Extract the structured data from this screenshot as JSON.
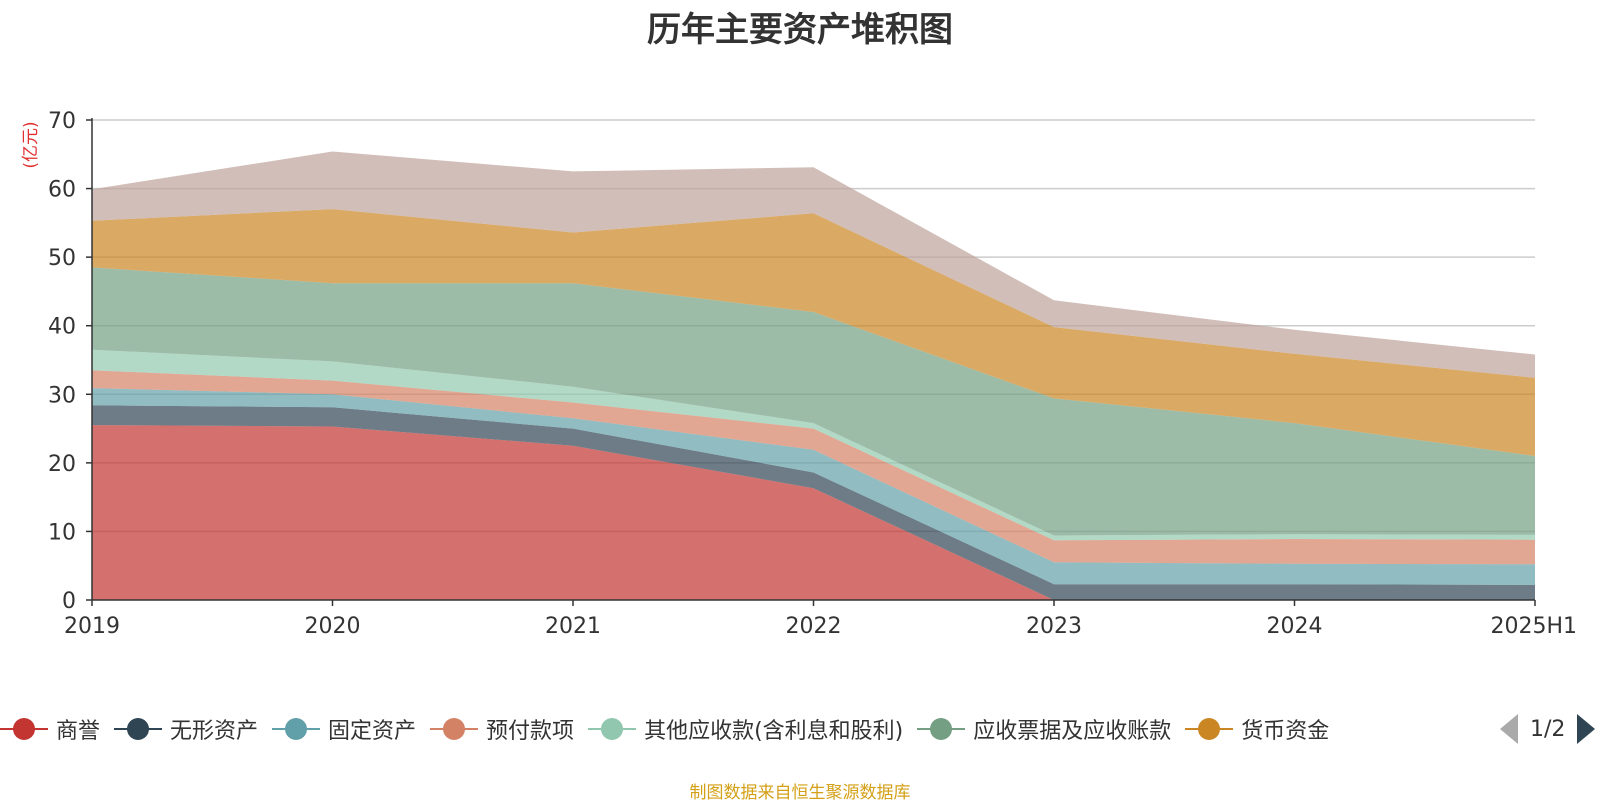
{
  "chart_data": {
    "type": "area",
    "stacked": true,
    "title": "历年主要资产堆积图",
    "ylabel": "(亿元)",
    "ylim": [
      0,
      70
    ],
    "yticks": [
      0,
      10,
      20,
      30,
      40,
      50,
      60,
      70
    ],
    "grid": true,
    "legend_position": "bottom",
    "categories": [
      "2019",
      "2020",
      "2021",
      "2022",
      "2023",
      "2024",
      "2025H1"
    ],
    "series": [
      {
        "name": "商誉",
        "color": "#c23531",
        "values": [
          25.5,
          25.3,
          22.5,
          16.3,
          0,
          0,
          0
        ]
      },
      {
        "name": "无形资产",
        "color": "#2f4554",
        "values": [
          2.9,
          2.8,
          2.5,
          2.3,
          2.3,
          2.3,
          2.2
        ]
      },
      {
        "name": "固定资产",
        "color": "#61a0a8",
        "values": [
          2.5,
          1.9,
          1.5,
          3.3,
          3.2,
          3.0,
          3.0
        ]
      },
      {
        "name": "预付款项",
        "color": "#d48265",
        "values": [
          2.6,
          2.0,
          2.3,
          3.1,
          3.2,
          3.6,
          3.6
        ]
      },
      {
        "name": "其他应收款(含利息和股利)",
        "color": "#91c7ae",
        "values": [
          3.0,
          2.8,
          2.3,
          0.8,
          0.7,
          0.7,
          0.7
        ]
      },
      {
        "name": "应收票据及应收账款",
        "color": "#749f83",
        "values": [
          12.0,
          11.4,
          15.1,
          16.2,
          20.0,
          16.2,
          11.5
        ]
      },
      {
        "name": "货币资金",
        "color": "#ca8622",
        "values": [
          6.8,
          10.8,
          7.4,
          14.4,
          10.4,
          10.1,
          11.4
        ]
      },
      {
        "name": "",
        "color": "#bda29a",
        "values": [
          4.6,
          8.4,
          8.9,
          6.7,
          3.9,
          3.5,
          3.4
        ]
      }
    ]
  },
  "legend": {
    "items": [
      {
        "label": "商誉",
        "color": "#c23531"
      },
      {
        "label": "无形资产",
        "color": "#2f4554"
      },
      {
        "label": "固定资产",
        "color": "#61a0a8"
      },
      {
        "label": "预付款项",
        "color": "#d48265"
      },
      {
        "label": "其他应收款(含利息和股利)",
        "color": "#91c7ae"
      },
      {
        "label": "应收票据及应收账款",
        "color": "#749f83"
      },
      {
        "label": "货币资金",
        "color": "#ca8622"
      }
    ],
    "page_text": "1/2",
    "prev_icon": "triangle-left-icon",
    "next_icon": "triangle-right-icon"
  },
  "source_note": "制图数据来自恒生聚源数据库"
}
